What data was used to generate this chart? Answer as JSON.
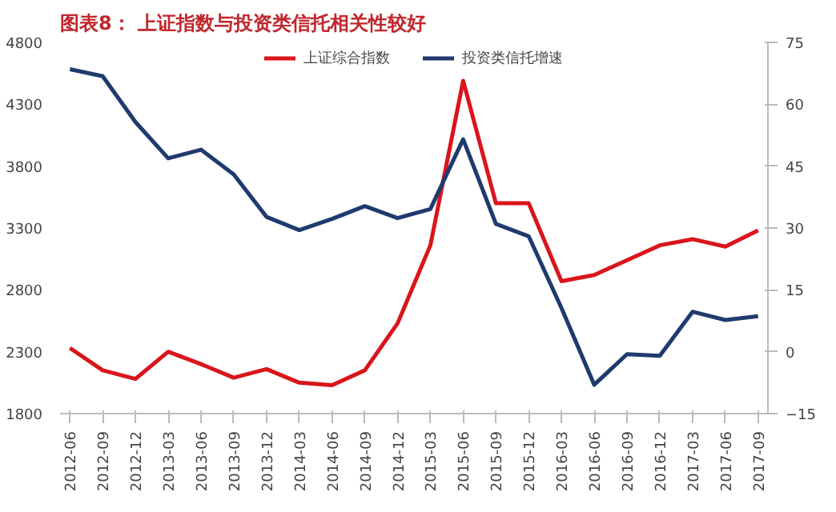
{
  "chart_data": {
    "type": "line",
    "title": "图表8：  上证指数与投资类信托相关性较好",
    "categories": [
      "2012-06",
      "2012-09",
      "2012-12",
      "2013-03",
      "2013-06",
      "2013-09",
      "2013-12",
      "2014-03",
      "2014-06",
      "2014-09",
      "2014-12",
      "2015-03",
      "2015-06",
      "2015-09",
      "2015-12",
      "2016-03",
      "2016-06",
      "2016-09",
      "2016-12",
      "2017-03",
      "2017-06",
      "2017-09"
    ],
    "series": [
      {
        "name": "上证综合指数",
        "color": "#d9151b",
        "values": [
          2330,
          2150,
          2080,
          2300,
          2200,
          2090,
          2160,
          2050,
          2030,
          2150,
          2530,
          3160,
          4490,
          3500,
          3500,
          2870,
          2920,
          3040,
          3160,
          3210,
          3150,
          3280
        ]
      },
      {
        "name": "投资类信托增速",
        "color": "#1f3a6e",
        "axis": "y2",
        "values": [
          68.5,
          66.8,
          55.7,
          46.9,
          49,
          43,
          32.7,
          29.5,
          32.2,
          35.3,
          32.4,
          34.6,
          51.5,
          31,
          28,
          10.6,
          -8,
          -0.6,
          -1,
          9.7,
          7.7,
          8.6
        ]
      }
    ],
    "ylim": [
      1800,
      4800
    ],
    "yticks": [
      1800,
      2300,
      2800,
      3300,
      3800,
      4300,
      4800
    ],
    "y2lim": [
      -15,
      75
    ],
    "y2ticks": [
      -15,
      0,
      15,
      30,
      45,
      60,
      75
    ],
    "grid": false,
    "legend": "top",
    "line_style": "solid",
    "marker": "none"
  }
}
